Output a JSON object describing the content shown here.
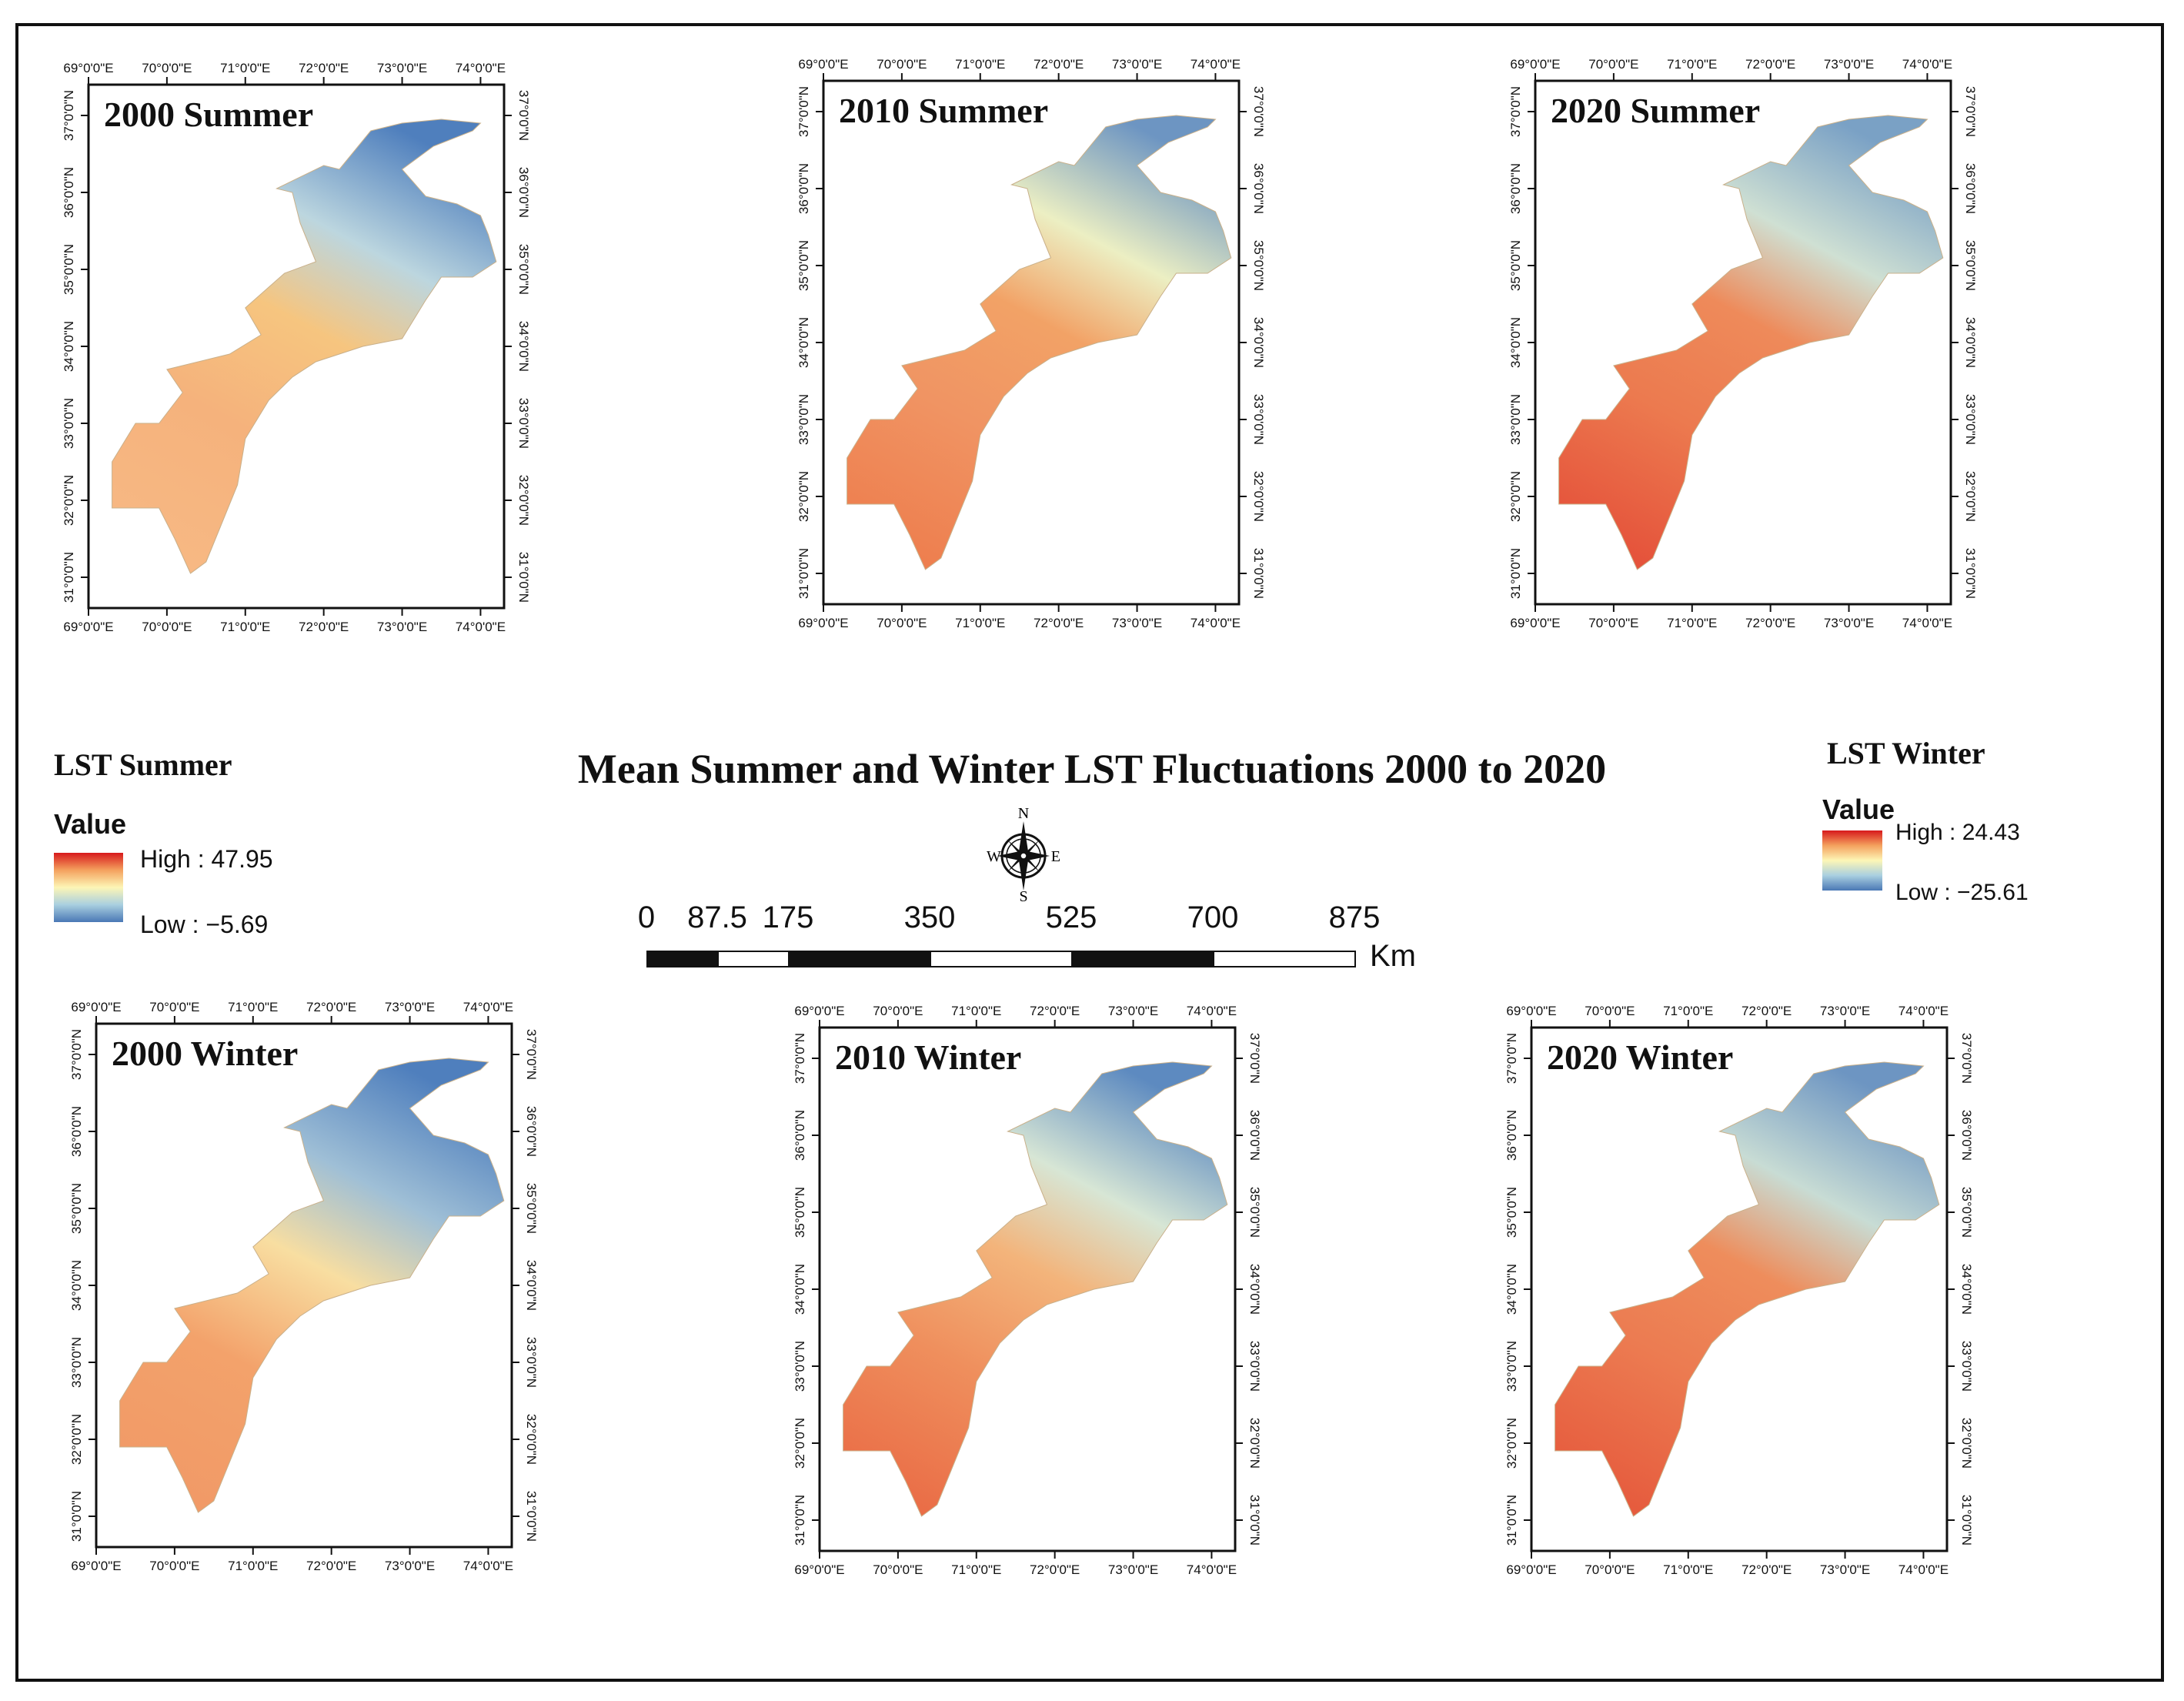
{
  "figure_title": "Mean Summer and Winter LST Fluctuations 2000 to 2020",
  "axes": {
    "lon_labels": [
      "69°0'0\"E",
      "70°0'0\"E",
      "71°0'0\"E",
      "72°0'0\"E",
      "73°0'0\"E",
      "74°0'0\"E"
    ],
    "lat_labels": [
      "31°0'0\"N",
      "32°0'0\"N",
      "33°0'0\"N",
      "34°0'0\"N",
      "35°0'0\"N",
      "36°0'0\"N",
      "37°0'0\"N"
    ],
    "lon_range": [
      69,
      74.3
    ],
    "lat_range": [
      30.6,
      37.4
    ]
  },
  "panels": [
    {
      "title": "2000 Summer",
      "season": "summer",
      "year": 2000
    },
    {
      "title": "2010 Summer",
      "season": "summer",
      "year": 2010
    },
    {
      "title": "2020 Summer",
      "season": "summer",
      "year": 2020
    },
    {
      "title": "2000 Winter",
      "season": "winter",
      "year": 2000
    },
    {
      "title": "2010 Winter",
      "season": "winter",
      "year": 2010
    },
    {
      "title": "2020 Winter",
      "season": "winter",
      "year": 2020
    }
  ],
  "legend_summer": {
    "heading": "LST Summer",
    "value_label": "Value",
    "high": "High : 47.95",
    "low": "Low : −5.69"
  },
  "legend_winter": {
    "heading": "LST Winter",
    "value_label": "Value",
    "high": "High : 24.43",
    "low": "Low : −25.61"
  },
  "compass": {
    "n": "N",
    "s": "S",
    "e": "E",
    "w": "W"
  },
  "scale_bar": {
    "labels": [
      "0",
      "87.5",
      "175",
      "350",
      "525",
      "700",
      "875"
    ],
    "values": [
      0,
      87.5,
      175,
      350,
      525,
      700,
      875
    ],
    "unit": "Km"
  },
  "colors": {
    "high": "#d7191c",
    "mid_high": "#f4a15e",
    "mid": "#fdf6b6",
    "mid_low": "#a9cfe0",
    "low": "#4a78b5"
  }
}
